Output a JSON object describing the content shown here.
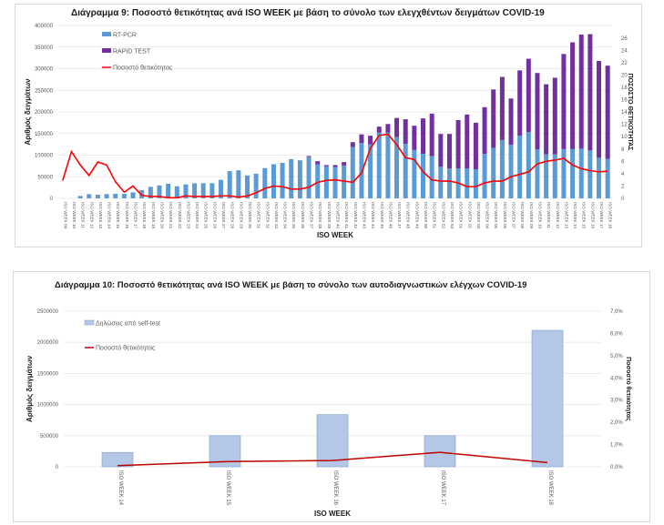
{
  "chart_data": [
    {
      "type": "bar",
      "stacked": true,
      "title": "Διάγραμμα 9: Ποσοστό  θετικότητας ανά ISO WEEK με βάση το σύνολο των ελεγχθέντων δειγμάτων COVID-19",
      "xlabel": "ISO WEEK",
      "ylabel": "Αριθμός δειγμάτων",
      "y2label": "ΠΟΣΟΣΤΟ ΘΕΤΙΚΟΤΗΤΑΣ",
      "ylim": [
        0,
        400000
      ],
      "yticks": [
        "0",
        "50000",
        "100000",
        "150000",
        "200000",
        "250000",
        "300000",
        "350000",
        "400000"
      ],
      "y2lim": [
        0,
        27
      ],
      "y2ticks": [
        "0",
        "2",
        "4",
        "6",
        "8",
        "10",
        "12",
        "14",
        "16",
        "18",
        "20",
        "22",
        "24",
        "26"
      ],
      "grid": true,
      "legend": "top-left",
      "categories": [
        "ISO WEEK 09",
        "ISO WEEK 10",
        "ISO WEEK 11",
        "ISO WEEK 12",
        "ISO WEEK 13",
        "ISO WEEK 14",
        "ISO WEEK 15",
        "ISO WEEK 16",
        "ISO WEEK 17",
        "ISO WEEK 18",
        "ISO WEEK 19",
        "ISO WEEK 20",
        "ISO WEEK 21",
        "ISO WEEK 22",
        "ISO WEEK 23",
        "ISO WEEK 24",
        "ISO WEEK 25",
        "ISO WEEK 26",
        "ISO WEEK 27",
        "ISO WEEK 28",
        "ISO WEEK 29",
        "ISO WEEK 30",
        "ISO WEEK 31",
        "ISO WEEK 32",
        "ISO WEEK 33",
        "ISO WEEK 34",
        "ISO WEEK 35",
        "ISO WEEK 36",
        "ISO WEEK 37",
        "ISO WEEK 38",
        "ISO WEEK 39",
        "ISO WEEK 40",
        "ISO WEEK 41",
        "ISO WEEK 42",
        "ISO WEEK 43",
        "ISO WEEK 44",
        "ISO WEEK 45",
        "ISO WEEK 46",
        "ISO WEEK 47",
        "ISO WEEK 48",
        "ISO WEEK 49",
        "ISO WEEK 50",
        "ISO WEEK 51",
        "ISO WEEK 52",
        "ISO WEEK 53",
        "ISO WEEK 01",
        "ISO WEEK 02",
        "ISO WEEK 03",
        "ISO WEEK 04",
        "ISO WEEK 05",
        "ISO WEEK 06",
        "ISO WEEK 07",
        "ISO WEEK 08",
        "ISO WEEK 09",
        "ISO WEEK 10",
        "ISO WEEK 11",
        "ISO WEEK 12",
        "ISO WEEK 13",
        "ISO WEEK 14",
        "ISO WEEK 15",
        "ISO WEEK 16",
        "ISO WEEK 17",
        "ISO WEEK 18"
      ],
      "series": [
        {
          "name": "RT-PCR",
          "type": "bar",
          "color": "#5b9bd5",
          "values": [
            0,
            0,
            5600,
            9800,
            8400,
            9800,
            10500,
            10500,
            14000,
            19000,
            26700,
            30000,
            33700,
            28000,
            32300,
            35000,
            35000,
            35000,
            42800,
            63000,
            65000,
            53000,
            57000,
            70000,
            79000,
            82000,
            91000,
            88000,
            96000,
            79000,
            74000,
            72700,
            76000,
            119000,
            128000,
            125000,
            152000,
            152000,
            142000,
            126000,
            112000,
            103000,
            98000,
            73000,
            69000,
            69000,
            69000,
            67000,
            103000,
            117000,
            135000,
            124000,
            145000,
            153000,
            113000,
            102000,
            102000,
            114000,
            114000,
            115000,
            111000,
            94000,
            91000
          ]
        },
        {
          "name": "RAPID TEST",
          "type": "bar",
          "color": "#7030a0",
          "values": [
            0,
            0,
            0,
            0,
            0,
            0,
            0,
            0,
            0,
            0,
            0,
            0,
            0,
            0,
            0,
            0,
            0,
            0,
            0,
            0,
            0,
            0,
            0,
            0,
            0,
            0,
            0,
            0,
            2000,
            7000,
            3000,
            4300,
            8000,
            11000,
            20000,
            20000,
            14000,
            20000,
            44000,
            57000,
            56000,
            82000,
            98000,
            76000,
            80000,
            112000,
            125000,
            108000,
            108000,
            135000,
            146000,
            107000,
            151000,
            170000,
            177000,
            162000,
            177000,
            220000,
            247000,
            264000,
            269000,
            224000,
            216000
          ]
        },
        {
          "name": "Ποσοστό θετικότητας",
          "type": "line",
          "axis": "right",
          "color": "#ff0000",
          "values": [
            2.9,
            7.6,
            5.4,
            3.7,
            5.9,
            5.4,
            2.7,
            1.0,
            2.0,
            0.5,
            0.3,
            0.3,
            0.1,
            0.1,
            0.4,
            0.3,
            0.3,
            0.3,
            0.4,
            0.4,
            0.2,
            0.4,
            0.9,
            1.6,
            2.0,
            1.9,
            1.5,
            1.5,
            1.8,
            2.6,
            2.9,
            3.0,
            2.8,
            2.6,
            4.1,
            8.1,
            10.2,
            10.4,
            8.7,
            6.6,
            6.3,
            4.3,
            3.0,
            2.8,
            2.8,
            2.5,
            1.9,
            1.9,
            2.5,
            2.8,
            2.8,
            3.5,
            3.9,
            4.3,
            5.6,
            6.0,
            6.2,
            6.5,
            5.4,
            4.8,
            4.5,
            4.3,
            4.4
          ]
        }
      ]
    },
    {
      "type": "bar",
      "title": "Διάγραμμα 10: Ποσοστό  θετικότητας ανά ISO WEEK  με βάση το σύνολο των αυτοδιαγνωστικών  ελέγχων COVID-19",
      "xlabel": "ISO WEEK",
      "ylabel": "Αριθμός δειγμάτων",
      "y2label": "Ποσοστό θετικότητας",
      "ylim": [
        0,
        2500000
      ],
      "yticks": [
        "0",
        "500000",
        "1000000",
        "1500000",
        "2000000",
        "2500000"
      ],
      "y2lim": [
        0,
        7
      ],
      "y2ticks": [
        "0,0%",
        "1,0%",
        "2,0%",
        "3,0%",
        "4,0%",
        "5,0%",
        "6,0%",
        "7,0%"
      ],
      "grid": true,
      "legend": "top-left",
      "categories": [
        "ISO WEEK 14",
        "ISO WEEK 15",
        "ISO WEEK 16",
        "ISO WEEK 17",
        "ISO WEEK 18"
      ],
      "series": [
        {
          "name": "Δηλώσεις από self-test",
          "type": "bar",
          "color": "#b4c7e7",
          "values": [
            231000,
            500000,
            838000,
            500000,
            2192000
          ]
        },
        {
          "name": "Ποσοστό θετικότητας",
          "type": "line",
          "axis": "right",
          "color": "#c00000",
          "values": [
            0.05,
            0.23,
            0.28,
            0.65,
            0.19
          ]
        }
      ]
    }
  ]
}
